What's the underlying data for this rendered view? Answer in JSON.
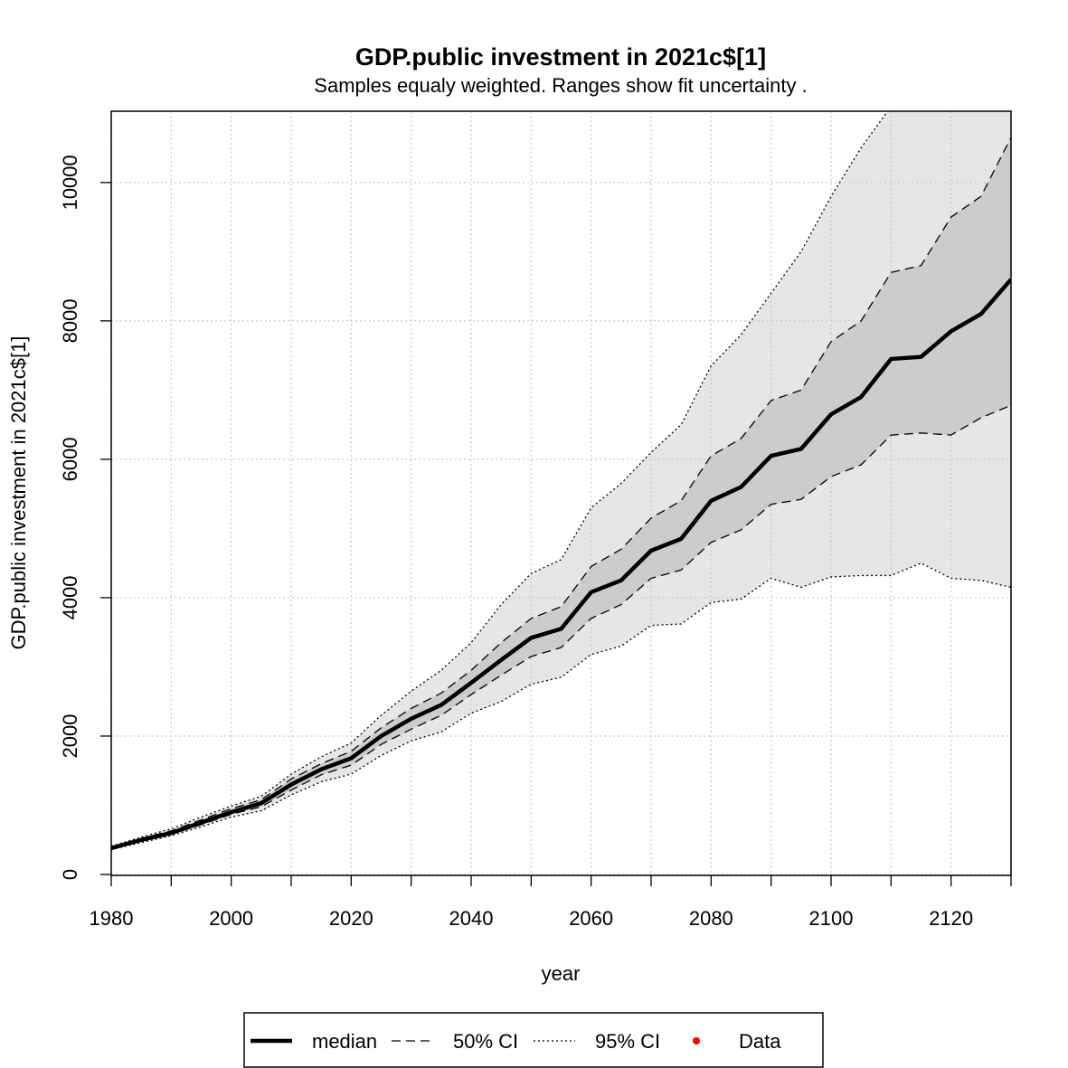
{
  "chart_data": {
    "type": "line",
    "title": "GDP.public investment in 2021c$[1]",
    "subtitle": "Samples equaly weighted. Ranges show  fit uncertainty .",
    "xlabel": "year",
    "ylabel": "GDP.public investment in 2021c$[1]",
    "x": [
      1980,
      1985,
      1990,
      1995,
      2000,
      2005,
      2010,
      2015,
      2020,
      2025,
      2030,
      2035,
      2040,
      2045,
      2050,
      2055,
      2060,
      2065,
      2070,
      2075,
      2080,
      2085,
      2090,
      2095,
      2100,
      2105,
      2110,
      2115,
      2120,
      2125,
      2130
    ],
    "series": [
      {
        "name": "median",
        "color": "#000000",
        "line": "solid",
        "values": [
          380,
          500,
          600,
          750,
          900,
          1030,
          1300,
          1520,
          1680,
          2000,
          2250,
          2450,
          2770,
          3100,
          3420,
          3550,
          4080,
          4250,
          4680,
          4850,
          5400,
          5600,
          6050,
          6150,
          6650,
          6900,
          7450,
          7480,
          7850,
          8100,
          8600
        ]
      },
      {
        "name": "50% CI",
        "color": "#000000",
        "line": "dashed",
        "fill": "#cccccc",
        "upper": [
          400,
          520,
          630,
          790,
          950,
          1080,
          1380,
          1600,
          1780,
          2120,
          2400,
          2620,
          2950,
          3350,
          3700,
          3870,
          4450,
          4700,
          5150,
          5400,
          6050,
          6300,
          6850,
          7000,
          7700,
          8000,
          8700,
          8800,
          9500,
          9800,
          10650
        ],
        "lower": [
          370,
          480,
          580,
          720,
          870,
          980,
          1220,
          1440,
          1580,
          1880,
          2100,
          2300,
          2600,
          2880,
          3150,
          3280,
          3700,
          3900,
          4280,
          4400,
          4800,
          4980,
          5350,
          5420,
          5750,
          5920,
          6350,
          6380,
          6350,
          6600,
          6780
        ]
      },
      {
        "name": "95% CI",
        "color": "#000000",
        "line": "dotted",
        "fill": "#e6e6e6",
        "upper": [
          410,
          540,
          660,
          830,
          990,
          1130,
          1450,
          1700,
          1900,
          2300,
          2650,
          2950,
          3350,
          3900,
          4350,
          4550,
          5300,
          5650,
          6100,
          6500,
          7350,
          7800,
          8400,
          9000,
          9800,
          10500,
          11100,
          11400,
          11700,
          12000,
          12300
        ],
        "lower": [
          360,
          460,
          560,
          690,
          830,
          920,
          1150,
          1340,
          1450,
          1720,
          1930,
          2060,
          2330,
          2500,
          2750,
          2850,
          3180,
          3300,
          3600,
          3620,
          3930,
          3980,
          4280,
          4150,
          4300,
          4320,
          4320,
          4500,
          4280,
          4250,
          4150
        ]
      },
      {
        "name": "Data",
        "color": "#ff0000",
        "marker": "point",
        "values": [
          null,
          null,
          null,
          null,
          null,
          null,
          null,
          null,
          null,
          null,
          null,
          null,
          null,
          null,
          null,
          null,
          null,
          null,
          null,
          null,
          null,
          null,
          null,
          null,
          null,
          null,
          null,
          null,
          null,
          null,
          null
        ]
      }
    ],
    "xlim": [
      1980,
      2130
    ],
    "ylim": [
      -13,
      11030
    ],
    "xticks": [
      1980,
      2000,
      2020,
      2040,
      2060,
      2080,
      2100,
      2120
    ],
    "xminor_ticks": [
      1990,
      2010,
      2030,
      2050,
      2070,
      2090,
      2110,
      2130
    ],
    "yticks": [
      0,
      2000,
      4000,
      6000,
      8000,
      10000
    ],
    "grid": true,
    "legend": "bottom"
  }
}
